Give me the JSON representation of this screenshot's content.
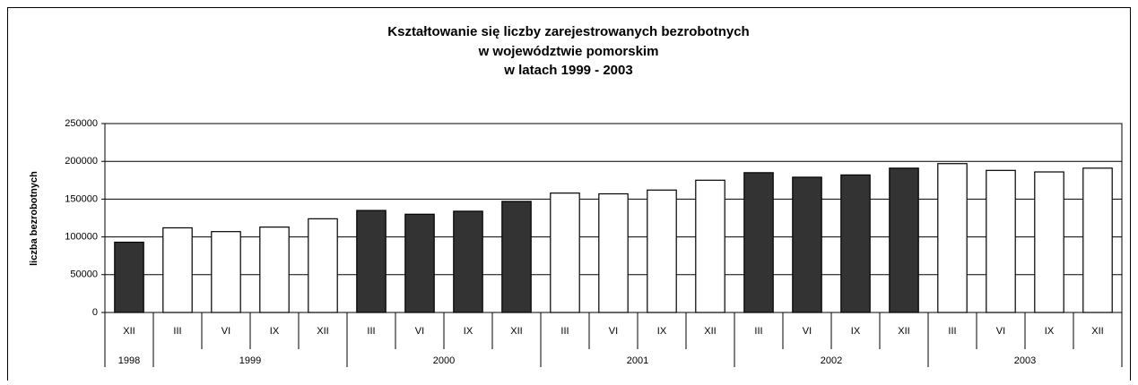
{
  "chart_data": {
    "type": "bar",
    "title": [
      "Kształtowanie się liczby zarejestrowanych bezrobotnych",
      "w województwie pomorskim",
      "w latach 1999 - 2003"
    ],
    "ylabel": "liczba bezrobotnych",
    "categories": [
      "XII",
      "III",
      "VI",
      "IX",
      "XII",
      "III",
      "VI",
      "IX",
      "XII",
      "III",
      "VI",
      "IX",
      "XII",
      "III",
      "VI",
      "IX",
      "XII",
      "III",
      "VI",
      "IX",
      "XII"
    ],
    "group_labels": [
      "1998",
      "1999",
      "2000",
      "2001",
      "2002",
      "2003"
    ],
    "group_sizes": [
      1,
      4,
      4,
      4,
      4,
      4
    ],
    "group_colors": [
      "#333333",
      "#ffffff",
      "#333333",
      "#ffffff",
      "#333333",
      "#ffffff"
    ],
    "values": [
      93000,
      112000,
      107000,
      113000,
      124000,
      135000,
      130000,
      134000,
      147000,
      158000,
      157000,
      162000,
      175000,
      185000,
      179000,
      182000,
      191000,
      197000,
      188000,
      186000,
      191000
    ],
    "ylim": [
      0,
      250000
    ],
    "yticks": [
      0,
      50000,
      100000,
      150000,
      200000,
      250000
    ],
    "grid": true
  }
}
